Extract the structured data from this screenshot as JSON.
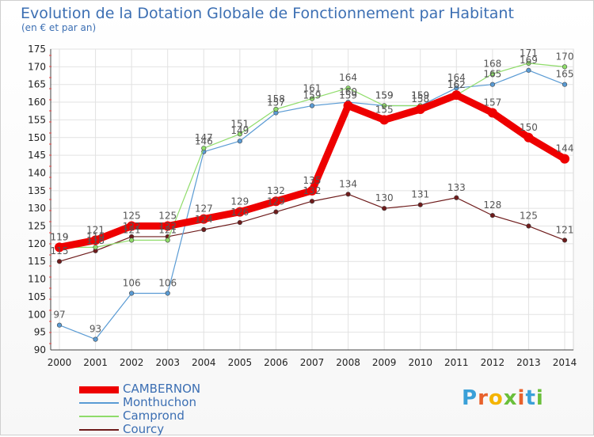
{
  "title": "Evolution de la Dotation Globale de Fonctionnement par Habitant",
  "subtitle": "(en € et par an)",
  "logo": {
    "text": "Proxiti",
    "letters": [
      "P",
      "r",
      "o",
      "x",
      "i",
      "t",
      "i"
    ],
    "colors": [
      "#3aa0d8",
      "#e8612c",
      "#f4b400",
      "#6abf3a",
      "#e8612c",
      "#3aa0d8",
      "#6abf3a"
    ]
  },
  "chart_data": {
    "type": "line",
    "title": "Evolution de la Dotation Globale de Fonctionnement par Habitant",
    "subtitle": "(en € et par an)",
    "xlabel": "",
    "ylabel": "",
    "ylim": [
      90,
      175
    ],
    "yticks": [
      90,
      95,
      100,
      105,
      110,
      115,
      120,
      125,
      130,
      135,
      140,
      145,
      150,
      155,
      160,
      165,
      170,
      175
    ],
    "x": [
      "2000",
      "2001",
      "2002",
      "2003",
      "2004",
      "2005",
      "2006",
      "2007",
      "2008",
      "2009",
      "2010",
      "2011",
      "2012",
      "2013",
      "2014"
    ],
    "grid": true,
    "legend": "bottom-left",
    "series": [
      {
        "name": "Courcy",
        "color": "#6e1b1b",
        "width": 1.2,
        "marker": 2.8,
        "values": [
          115,
          118,
          122,
          122,
          124,
          126,
          129,
          132,
          134,
          130,
          131,
          133,
          128,
          125,
          121
        ]
      },
      {
        "name": "Monthuchon",
        "color": "#5a9bd4",
        "width": 1.2,
        "marker": 2.8,
        "values": [
          97,
          93,
          106,
          106,
          146,
          149,
          157,
          159,
          160,
          159,
          159,
          164,
          165,
          169,
          165
        ]
      },
      {
        "name": "Camprond",
        "color": "#8fdc6a",
        "width": 1.2,
        "marker": 2.8,
        "values": [
          119,
          119,
          121,
          121,
          147,
          151,
          158,
          161,
          164,
          159,
          159,
          162,
          168,
          171,
          170
        ]
      },
      {
        "name": "CAMBERNON",
        "color": "#ee0000",
        "width": 9,
        "marker": 6,
        "values": [
          119,
          121,
          125,
          125,
          127,
          129,
          132,
          135,
          159,
          155,
          158,
          162,
          157,
          150,
          144
        ]
      }
    ]
  }
}
